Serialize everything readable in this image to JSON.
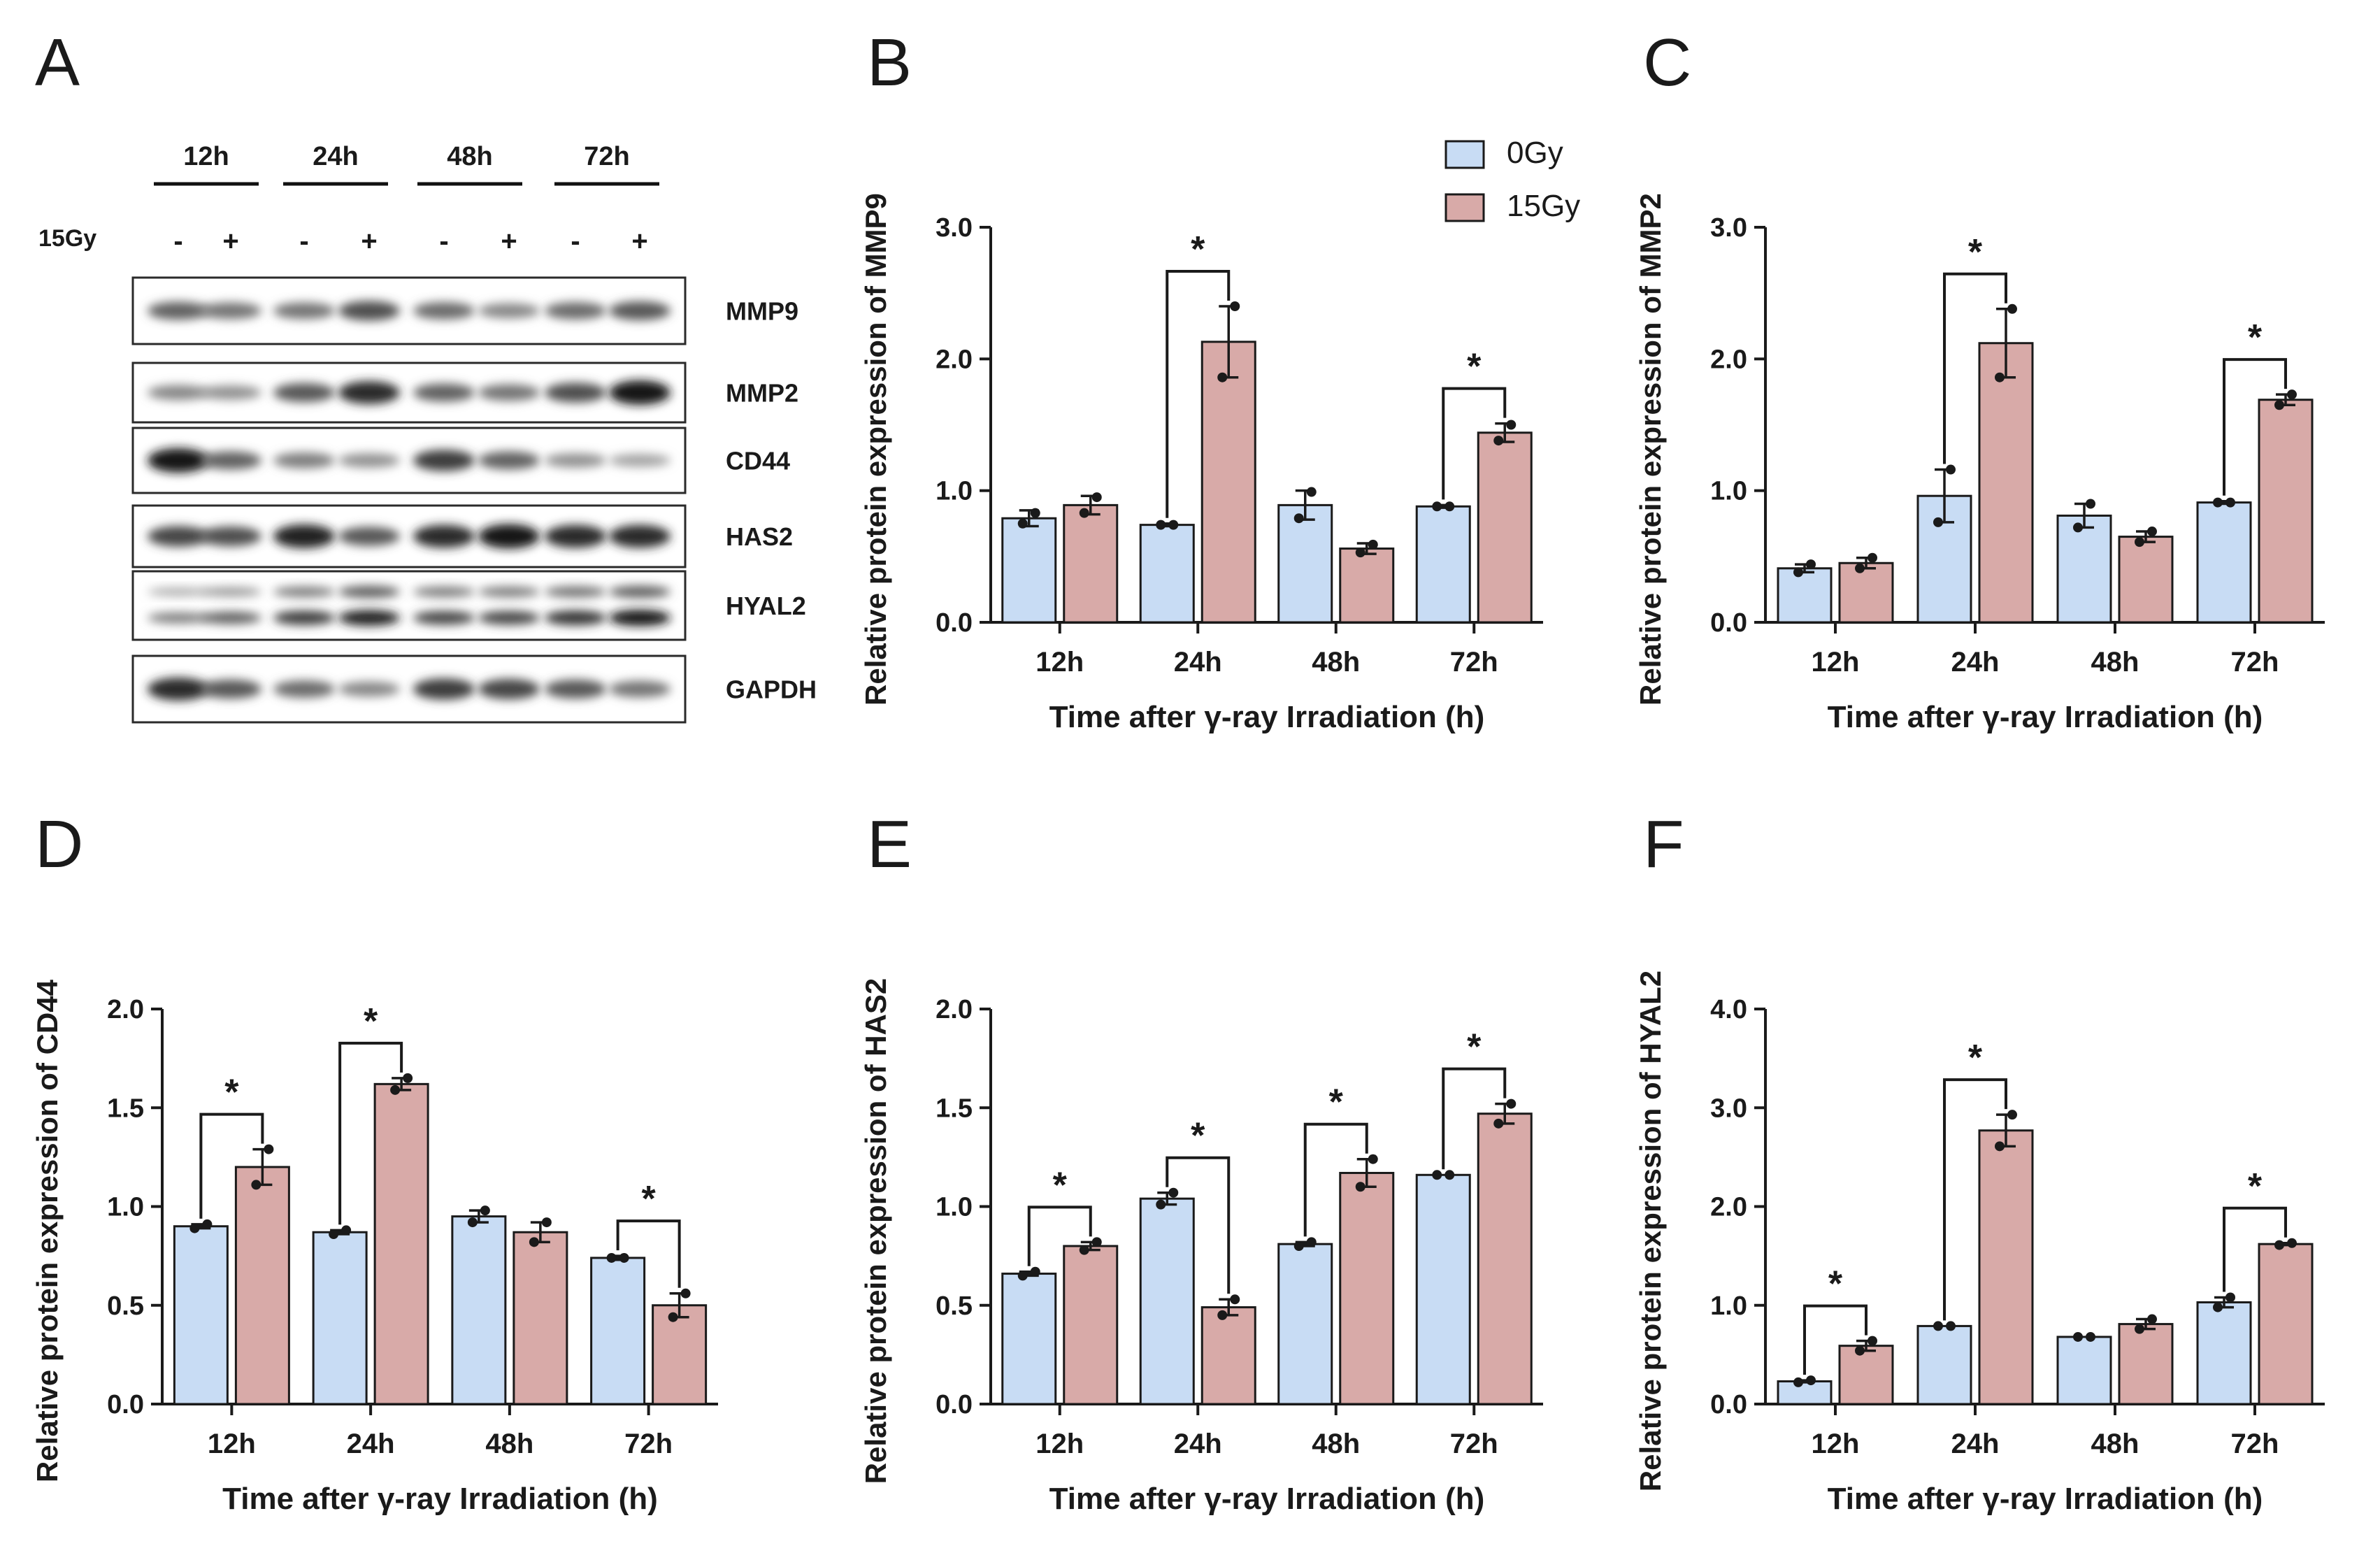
{
  "colors": {
    "ctrl": "#c8dcf4",
    "irr": "#d8aaa8",
    "ctrl_legend": "#c8dcf4",
    "irr_legend": "#d8aaa8",
    "ink": "#1a1a1a"
  },
  "legend": {
    "items": [
      "0Gy",
      "15Gy"
    ]
  },
  "blot": {
    "panel_letter": "A",
    "time_groups": [
      "12h",
      "24h",
      "48h",
      "72h"
    ],
    "dose_label": "15Gy",
    "lanes": [
      "-",
      "+",
      "-",
      "+",
      "-",
      "+",
      "-",
      "+"
    ],
    "proteins": [
      {
        "name": "MMP9",
        "rows": [
          [
            0.55,
            0.45,
            0.45,
            0.65,
            0.5,
            0.35,
            0.5,
            0.6
          ]
        ]
      },
      {
        "name": "MMP2",
        "rows": [
          [
            0.35,
            0.3,
            0.6,
            0.85,
            0.55,
            0.45,
            0.65,
            0.95
          ]
        ]
      },
      {
        "name": "CD44",
        "rows": [
          [
            0.95,
            0.55,
            0.4,
            0.3,
            0.75,
            0.55,
            0.3,
            0.2
          ]
        ]
      },
      {
        "name": "HAS2",
        "rows": [
          [
            0.7,
            0.65,
            0.9,
            0.6,
            0.85,
            0.95,
            0.85,
            0.85
          ]
        ]
      },
      {
        "name": "HYAL2",
        "rows": [
          [
            0.15,
            0.25,
            0.4,
            0.55,
            0.4,
            0.4,
            0.45,
            0.55
          ],
          [
            0.4,
            0.55,
            0.75,
            0.9,
            0.7,
            0.7,
            0.8,
            0.95
          ]
        ]
      },
      {
        "name": "GAPDH",
        "rows": [
          [
            0.85,
            0.6,
            0.5,
            0.35,
            0.75,
            0.7,
            0.6,
            0.45
          ]
        ]
      }
    ]
  },
  "chart_data": [
    {
      "panel": "B",
      "type": "bar",
      "categories": [
        "12h",
        "24h",
        "48h",
        "72h"
      ],
      "xlabel": "Time after γ-ray Irradiation (h)",
      "ylabel": "Relative protein expression of MMP9",
      "ylim": [
        0,
        3.0
      ],
      "yticks": [
        "0.0",
        "1.0",
        "2.0",
        "3.0"
      ],
      "ytick_values": [
        0,
        1,
        2,
        3
      ],
      "series": [
        {
          "name": "0Gy",
          "values": [
            0.79,
            0.74,
            0.89,
            0.88
          ],
          "err": [
            0.06,
            0.01,
            0.11,
            0.01
          ],
          "points": [
            [
              0.75,
              0.83
            ],
            [
              0.74,
              0.74
            ],
            [
              0.79,
              0.99
            ],
            [
              0.88,
              0.88
            ]
          ]
        },
        {
          "name": "15Gy",
          "values": [
            0.89,
            2.13,
            0.56,
            1.44
          ],
          "err": [
            0.07,
            0.27,
            0.04,
            0.07
          ],
          "points": [
            [
              0.83,
              0.95
            ],
            [
              1.86,
              2.4
            ],
            [
              0.53,
              0.59
            ],
            [
              1.38,
              1.5
            ]
          ]
        }
      ],
      "significance": [
        {
          "category": "24h",
          "label": "*"
        },
        {
          "category": "72h",
          "label": "*"
        }
      ],
      "legend": "top-right"
    },
    {
      "panel": "C",
      "type": "bar",
      "categories": [
        "12h",
        "24h",
        "48h",
        "72h"
      ],
      "xlabel": "Time after γ-ray Irradiation (h)",
      "ylabel": "Relative protein expression of MMP2",
      "ylim": [
        0,
        3.0
      ],
      "yticks": [
        "0.0",
        "1.0",
        "2.0",
        "3.0"
      ],
      "ytick_values": [
        0,
        1,
        2,
        3
      ],
      "series": [
        {
          "name": "0Gy",
          "values": [
            0.41,
            0.96,
            0.81,
            0.91
          ],
          "err": [
            0.03,
            0.2,
            0.09,
            0.01
          ],
          "points": [
            [
              0.38,
              0.44
            ],
            [
              0.76,
              1.16
            ],
            [
              0.72,
              0.9
            ],
            [
              0.91,
              0.91
            ]
          ]
        },
        {
          "name": "15Gy",
          "values": [
            0.45,
            2.12,
            0.65,
            1.69
          ],
          "err": [
            0.04,
            0.26,
            0.04,
            0.04
          ],
          "points": [
            [
              0.41,
              0.49
            ],
            [
              1.86,
              2.38
            ],
            [
              0.61,
              0.69
            ],
            [
              1.65,
              1.73
            ]
          ]
        }
      ],
      "significance": [
        {
          "category": "24h",
          "label": "*"
        },
        {
          "category": "72h",
          "label": "*"
        }
      ]
    },
    {
      "panel": "D",
      "type": "bar",
      "categories": [
        "12h",
        "24h",
        "48h",
        "72h"
      ],
      "xlabel": "Time after γ-ray Irradiation (h)",
      "ylabel": "Relative protein expression of CD44",
      "ylim": [
        0,
        2.0
      ],
      "yticks": [
        "0.0",
        "0.5",
        "1.0",
        "1.5",
        "2.0"
      ],
      "ytick_values": [
        0,
        0.5,
        1.0,
        1.5,
        2.0
      ],
      "series": [
        {
          "name": "0Gy",
          "values": [
            0.9,
            0.87,
            0.95,
            0.74
          ],
          "err": [
            0.01,
            0.01,
            0.03,
            0.01
          ],
          "points": [
            [
              0.89,
              0.91
            ],
            [
              0.86,
              0.88
            ],
            [
              0.92,
              0.98
            ],
            [
              0.74,
              0.74
            ]
          ]
        },
        {
          "name": "15Gy",
          "values": [
            1.2,
            1.62,
            0.87,
            0.5
          ],
          "err": [
            0.09,
            0.03,
            0.05,
            0.06
          ],
          "points": [
            [
              1.11,
              1.29
            ],
            [
              1.59,
              1.65
            ],
            [
              0.82,
              0.92
            ],
            [
              0.44,
              0.56
            ]
          ]
        }
      ],
      "significance": [
        {
          "category": "12h",
          "label": "*"
        },
        {
          "category": "24h",
          "label": "*"
        },
        {
          "category": "72h",
          "label": "*"
        }
      ]
    },
    {
      "panel": "E",
      "type": "bar",
      "categories": [
        "12h",
        "24h",
        "48h",
        "72h"
      ],
      "xlabel": "Time after γ-ray Irradiation (h)",
      "ylabel": "Relative protein expression of HAS2",
      "ylim": [
        0,
        2.0
      ],
      "yticks": [
        "0.0",
        "0.5",
        "1.0",
        "1.5",
        "2.0"
      ],
      "ytick_values": [
        0,
        0.5,
        1.0,
        1.5,
        2.0
      ],
      "series": [
        {
          "name": "0Gy",
          "values": [
            0.66,
            1.04,
            0.81,
            1.16
          ],
          "err": [
            0.01,
            0.03,
            0.01,
            0.0
          ],
          "points": [
            [
              0.65,
              0.67
            ],
            [
              1.01,
              1.07
            ],
            [
              0.8,
              0.82
            ],
            [
              1.16,
              1.16
            ]
          ]
        },
        {
          "name": "15Gy",
          "values": [
            0.8,
            0.49,
            1.17,
            1.47
          ],
          "err": [
            0.02,
            0.04,
            0.07,
            0.05
          ],
          "points": [
            [
              0.78,
              0.82
            ],
            [
              0.45,
              0.53
            ],
            [
              1.1,
              1.24
            ],
            [
              1.42,
              1.52
            ]
          ]
        }
      ],
      "significance": [
        {
          "category": "12h",
          "label": "*"
        },
        {
          "category": "24h",
          "label": "*"
        },
        {
          "category": "48h",
          "label": "*"
        },
        {
          "category": "72h",
          "label": "*"
        }
      ]
    },
    {
      "panel": "F",
      "type": "bar",
      "categories": [
        "12h",
        "24h",
        "48h",
        "72h"
      ],
      "xlabel": "Time after γ-ray Irradiation (h)",
      "ylabel": "Relative protein expression of HYAL2",
      "ylim": [
        0,
        4.0
      ],
      "yticks": [
        "0.0",
        "1.0",
        "2.0",
        "3.0",
        "4.0"
      ],
      "ytick_values": [
        0,
        1,
        2,
        3,
        4
      ],
      "series": [
        {
          "name": "0Gy",
          "values": [
            0.23,
            0.79,
            0.68,
            1.03
          ],
          "err": [
            0.01,
            0.0,
            0.0,
            0.05
          ],
          "points": [
            [
              0.22,
              0.24
            ],
            [
              0.79,
              0.79
            ],
            [
              0.68,
              0.68
            ],
            [
              0.98,
              1.08
            ]
          ]
        },
        {
          "name": "15Gy",
          "values": [
            0.59,
            2.77,
            0.81,
            1.62
          ],
          "err": [
            0.05,
            0.16,
            0.05,
            0.01
          ],
          "points": [
            [
              0.54,
              0.64
            ],
            [
              2.61,
              2.93
            ],
            [
              0.76,
              0.86
            ],
            [
              1.61,
              1.63
            ]
          ]
        }
      ],
      "significance": [
        {
          "category": "12h",
          "label": "*"
        },
        {
          "category": "24h",
          "label": "*"
        },
        {
          "category": "72h",
          "label": "*"
        }
      ]
    }
  ]
}
